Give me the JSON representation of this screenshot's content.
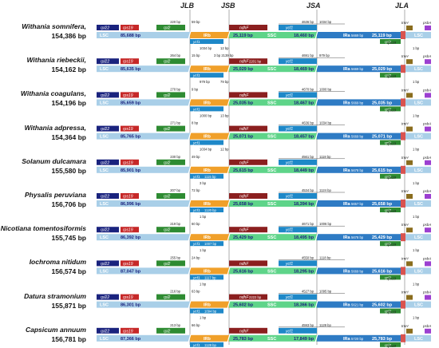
{
  "headers": [
    "JLB",
    "JSB",
    "JSA",
    "JLA"
  ],
  "colors": {
    "LSC": "#a9cfe8",
    "LSC_text": "#ffffff",
    "IRb": "#f0a02a",
    "SSC": "#5ed489",
    "IRa": "#2e7bc4",
    "rpl22": "#1a237e",
    "rps19": "#c62828",
    "rpl2": "#2e8b32",
    "ndhF": "#8b1f1f",
    "ycf1": "#1e88c8",
    "trnH": "#8a6d1e",
    "psbA": "#9c3fd1",
    "junction": "#999999"
  },
  "rows": [
    {
      "name": "Withania somnifera,",
      "length": "154,386 bp",
      "lsc": "85,688 bp",
      "irb": "25,119 bp",
      "ssc": "18,460 bp",
      "ira": "25,119 bp",
      "jlb_top": [
        "220 bp",
        "59 bp"
      ],
      "jsb_top": "",
      "jsb_bottom": [
        "1034 bp",
        "12 bp"
      ],
      "jsa_top": [
        "4636 bp",
        "1034 bp"
      ],
      "ira_ycf1": "5669 bp",
      "jla_bottom": "1 bp",
      "genes": {
        "rpl22": "rpl22",
        "rps19": "rps19",
        "rpl2": "rpl2",
        "ndhF": "ndhF",
        "ycf1a": "ycf1",
        "ycf1b": "ycf1",
        "rpl2b": "rpl2",
        "rps19b": "rps19",
        "trnH": "trnH",
        "psbA": "psbA"
      }
    },
    {
      "name": "Withania riebeckii,",
      "length": "154,162 bp",
      "lsc": "85,635 bp",
      "irb": "25,029 bp",
      "ssc": "18,469 bp",
      "ira": "25,029 bp",
      "jlb_top": [
        "264 bp",
        "15 bp"
      ],
      "jsb_top": "3 bp  2139 bp",
      "jsb_bottom": [
        "979 bp",
        "79 bp"
      ],
      "jsa_top": [
        "4691 bp",
        "979 bp"
      ],
      "ira_ycf1": "5669 bp",
      "jla_bottom": "1 bp",
      "ndhF_bp": "2201 bp",
      "genes": {
        "rpl22": "rpl22",
        "rps19": "rps19",
        "rpl2": "rpl2",
        "ndhF": "ndhF",
        "ycf1a": "ycf1",
        "ycf1b": "ycf1",
        "rpl2b": "rpl2",
        "rps19b": "rps19",
        "trnH": "trnH",
        "psbA": "psbA"
      }
    },
    {
      "name": "Withania coagulans,",
      "length": "154,196 bp",
      "lsc": "85,659 bp",
      "irb": "25,035 bp",
      "ssc": "18,467 bp",
      "ira": "25,035 bp",
      "jlb_top": [
        "270 bp",
        "9 bp"
      ],
      "jsb_top": "",
      "jsb_bottom": [
        "1000 bp",
        "13 bp"
      ],
      "jsa_top": [
        "4670 bp",
        "1000 bp"
      ],
      "ira_ycf1": "5669 bp",
      "jla_bottom": "1 bp",
      "genes": {
        "rpl22": "rpl22",
        "rps19": "rps19",
        "rpl2": "rpl2",
        "ndhF": "ndhF",
        "ycf1a": "ycf1",
        "ycf1b": "ycf1",
        "rpl2b": "rpl2",
        "rps19b": "rps19",
        "trnH": "trnH",
        "psbA": "psbA"
      }
    },
    {
      "name": "Withania adpressa,",
      "length": "154,364 bp",
      "lsc": "85,765 bp",
      "irb": "25,071 bp",
      "ssc": "18,457 bp",
      "ira": "25,071 bp",
      "jlb_top": [
        "271 bp",
        "8 bp"
      ],
      "jsb_top": "",
      "jsb_bottom": [
        "1034 bp",
        "12 bp"
      ],
      "jsa_top": [
        "4636 bp",
        "1034 bp"
      ],
      "ira_ycf1": "5669 bp",
      "jla_bottom": "1 bp",
      "genes": {
        "rpl22": "rpl22",
        "rps19": "rps19",
        "rpl2": "rpl2",
        "ndhF": "ndhF",
        "ycf1a": "ycf1",
        "ycf1b": "ycf1",
        "rpl2b": "rpl2",
        "rps19b": "rps19",
        "trnH": "trnH",
        "psbA": "psbA"
      }
    },
    {
      "name": "Solanum dulcamara",
      "length": "155,580 bp",
      "lsc": "85,901 bp",
      "irb": "25,615 bp",
      "ssc": "18,449 bp",
      "ira": "25,615 bp",
      "jlb_top": [
        "230 bp",
        "49 bp"
      ],
      "jsb_top": "",
      "jsb_bottom": [
        "3 bp",
        ""
      ],
      "jsa_top": [
        "4561 bp",
        "1118 bp"
      ],
      "ira_ycf1": "5678 bp",
      "jla_bottom": "1 bp",
      "ycf1_bp": "1115 bp",
      "genes": {
        "rpl22": "rpl22",
        "rps19": "rps19",
        "rpl2": "rpl2",
        "ndhF": "ndhF",
        "ycf1a": "ycf1",
        "ycf1b": "ycf1",
        "rpl2b": "rpl2",
        "rps19b": "rps19",
        "trnH": "trnH",
        "psbA": "psbA"
      }
    },
    {
      "name": "Physalis peruviana",
      "length": "156,706 bp",
      "lsc": "86,996 bp",
      "irb": "25,658 bp",
      "ssc": "18,394 bp",
      "ira": "25,658 bp",
      "jlb_top": [
        "207 bp",
        "72 bp"
      ],
      "jsb_top": "",
      "jsb_bottom": [
        "1 bp",
        ""
      ],
      "jsa_top": [
        "4534 bp",
        "1124 bp"
      ],
      "ira_ycf1": "5657 bp",
      "jla_bottom": "1 bp",
      "ycf1_bp": "1120 bp",
      "genes": {
        "rpl22": "rpl22",
        "rps19": "rps19",
        "rpl2": "rpl2",
        "ndhF": "ndhF",
        "ycf1a": "ycf1",
        "ycf1b": "ycf1",
        "rpl2b": "rpl2",
        "rps19b": "rps19",
        "trnH": "trnH",
        "psbA": "psbA"
      }
    },
    {
      "name": "Nicotiana tomentosiformis",
      "length": "155,745 bp",
      "lsc": "86,392 bp",
      "irb": "25,429 bp",
      "ssc": "18,495 bp",
      "ira": "25,429 bp",
      "jlb_top": [
        "219 bp",
        "60 bp"
      ],
      "jsb_top": "",
      "jsb_bottom": [
        "1 bp",
        ""
      ],
      "jsa_top": [
        "4671 bp",
        "1006 bp"
      ],
      "ira_ycf1": "5678 bp",
      "jla_bottom": "1 bp",
      "ycf1_bp": "1007 bp",
      "genes": {
        "rpl22": "rpl22",
        "rps19": "rps19",
        "rpl2": "rpl2",
        "ndhF": "ndhF",
        "ycf1a": "ycf1",
        "ycf1b": "ycf1",
        "rpl2b": "rpl2",
        "rps19b": "rps19",
        "trnH": "trnH",
        "psbA": "psbA"
      }
    },
    {
      "name": "Iochroma nitidum",
      "length": "156,574 bp",
      "lsc": "87,047 bp",
      "irb": "25,616 bp",
      "ssc": "18,295 bp",
      "ira": "25,616 bp",
      "jlb_top": [
        "255 bp",
        "24 bp"
      ],
      "jsb_top": "",
      "jsb_bottom": [
        "1 bp",
        ""
      ],
      "jsa_top": [
        "4550 bp",
        "1118 bp"
      ],
      "ira_ycf1": "5669 bp",
      "jla_bottom": "1 bp",
      "ycf1_bp": "1117 bp",
      "genes": {
        "rpl22": "rpl22",
        "rps19": "rps19",
        "rpl2": "rpl2",
        "ndhF": "ndhF",
        "ycf1a": "ycf1",
        "ycf1b": "ycf1",
        "rpl2b": "rpl2",
        "rps19b": "rps19",
        "trnH": "trnH",
        "psbA": "psbA"
      }
    },
    {
      "name": "Datura stramonium",
      "length": "155,871 bp",
      "lsc": "86,301 bp",
      "irb": "25,602 bp",
      "ssc": "18,366 bp",
      "ira": "25,602 bp",
      "jlb_top": [
        "216 bp",
        "63 bp"
      ],
      "jsb_top": "",
      "jsb_bottom": [
        "1 bp",
        ""
      ],
      "jsa_top": [
        "4527 bp",
        "1095 bp"
      ],
      "ira_ycf1": "5621 bp",
      "jla_bottom": "1 bp",
      "ycf1_bp": "1094 bp",
      "ndhF_bp": "2222 bp",
      "genes": {
        "rpl22": "rpl22",
        "rps19": "rps19",
        "rpl2": "rpl2",
        "ndhF": "ndhF",
        "ycf1a": "ycf1",
        "ycf1b": "ycf1",
        "rpl2b": "rpl2",
        "rps19b": "rps19",
        "trnH": "trnH",
        "psbA": "psbA"
      }
    },
    {
      "name": "Capsicum annuum",
      "length": "156,781 bp",
      "lsc": "87,366 bp",
      "irb": "25,783 bp",
      "ssc": "17,849 bp",
      "ira": "25,783 bp",
      "jlb_top": [
        "213 bp",
        "66 bp"
      ],
      "jsb_top": "",
      "jsb_bottom": [
        "1 bp",
        ""
      ],
      "jsa_top": [
        "4593 bp",
        "1128 bp"
      ],
      "ira_ycf1": "5720 bp",
      "jla_bottom": "1 bp",
      "ycf1_bp": "1128 bp",
      "genes": {
        "rpl22": "rpl22",
        "rps19": "rps19",
        "rpl2": "rpl2",
        "ndhF": "ndhF",
        "ycf1a": "ycf1",
        "ycf1b": "ycf1",
        "rpl2b": "rpl2",
        "rps19b": "rps19",
        "trnH": "trnH",
        "psbA": "psbA"
      }
    }
  ],
  "region_labels": {
    "lsc": "LSC",
    "irb": "IRb",
    "ssc": "SSC",
    "ira": "IRa"
  }
}
